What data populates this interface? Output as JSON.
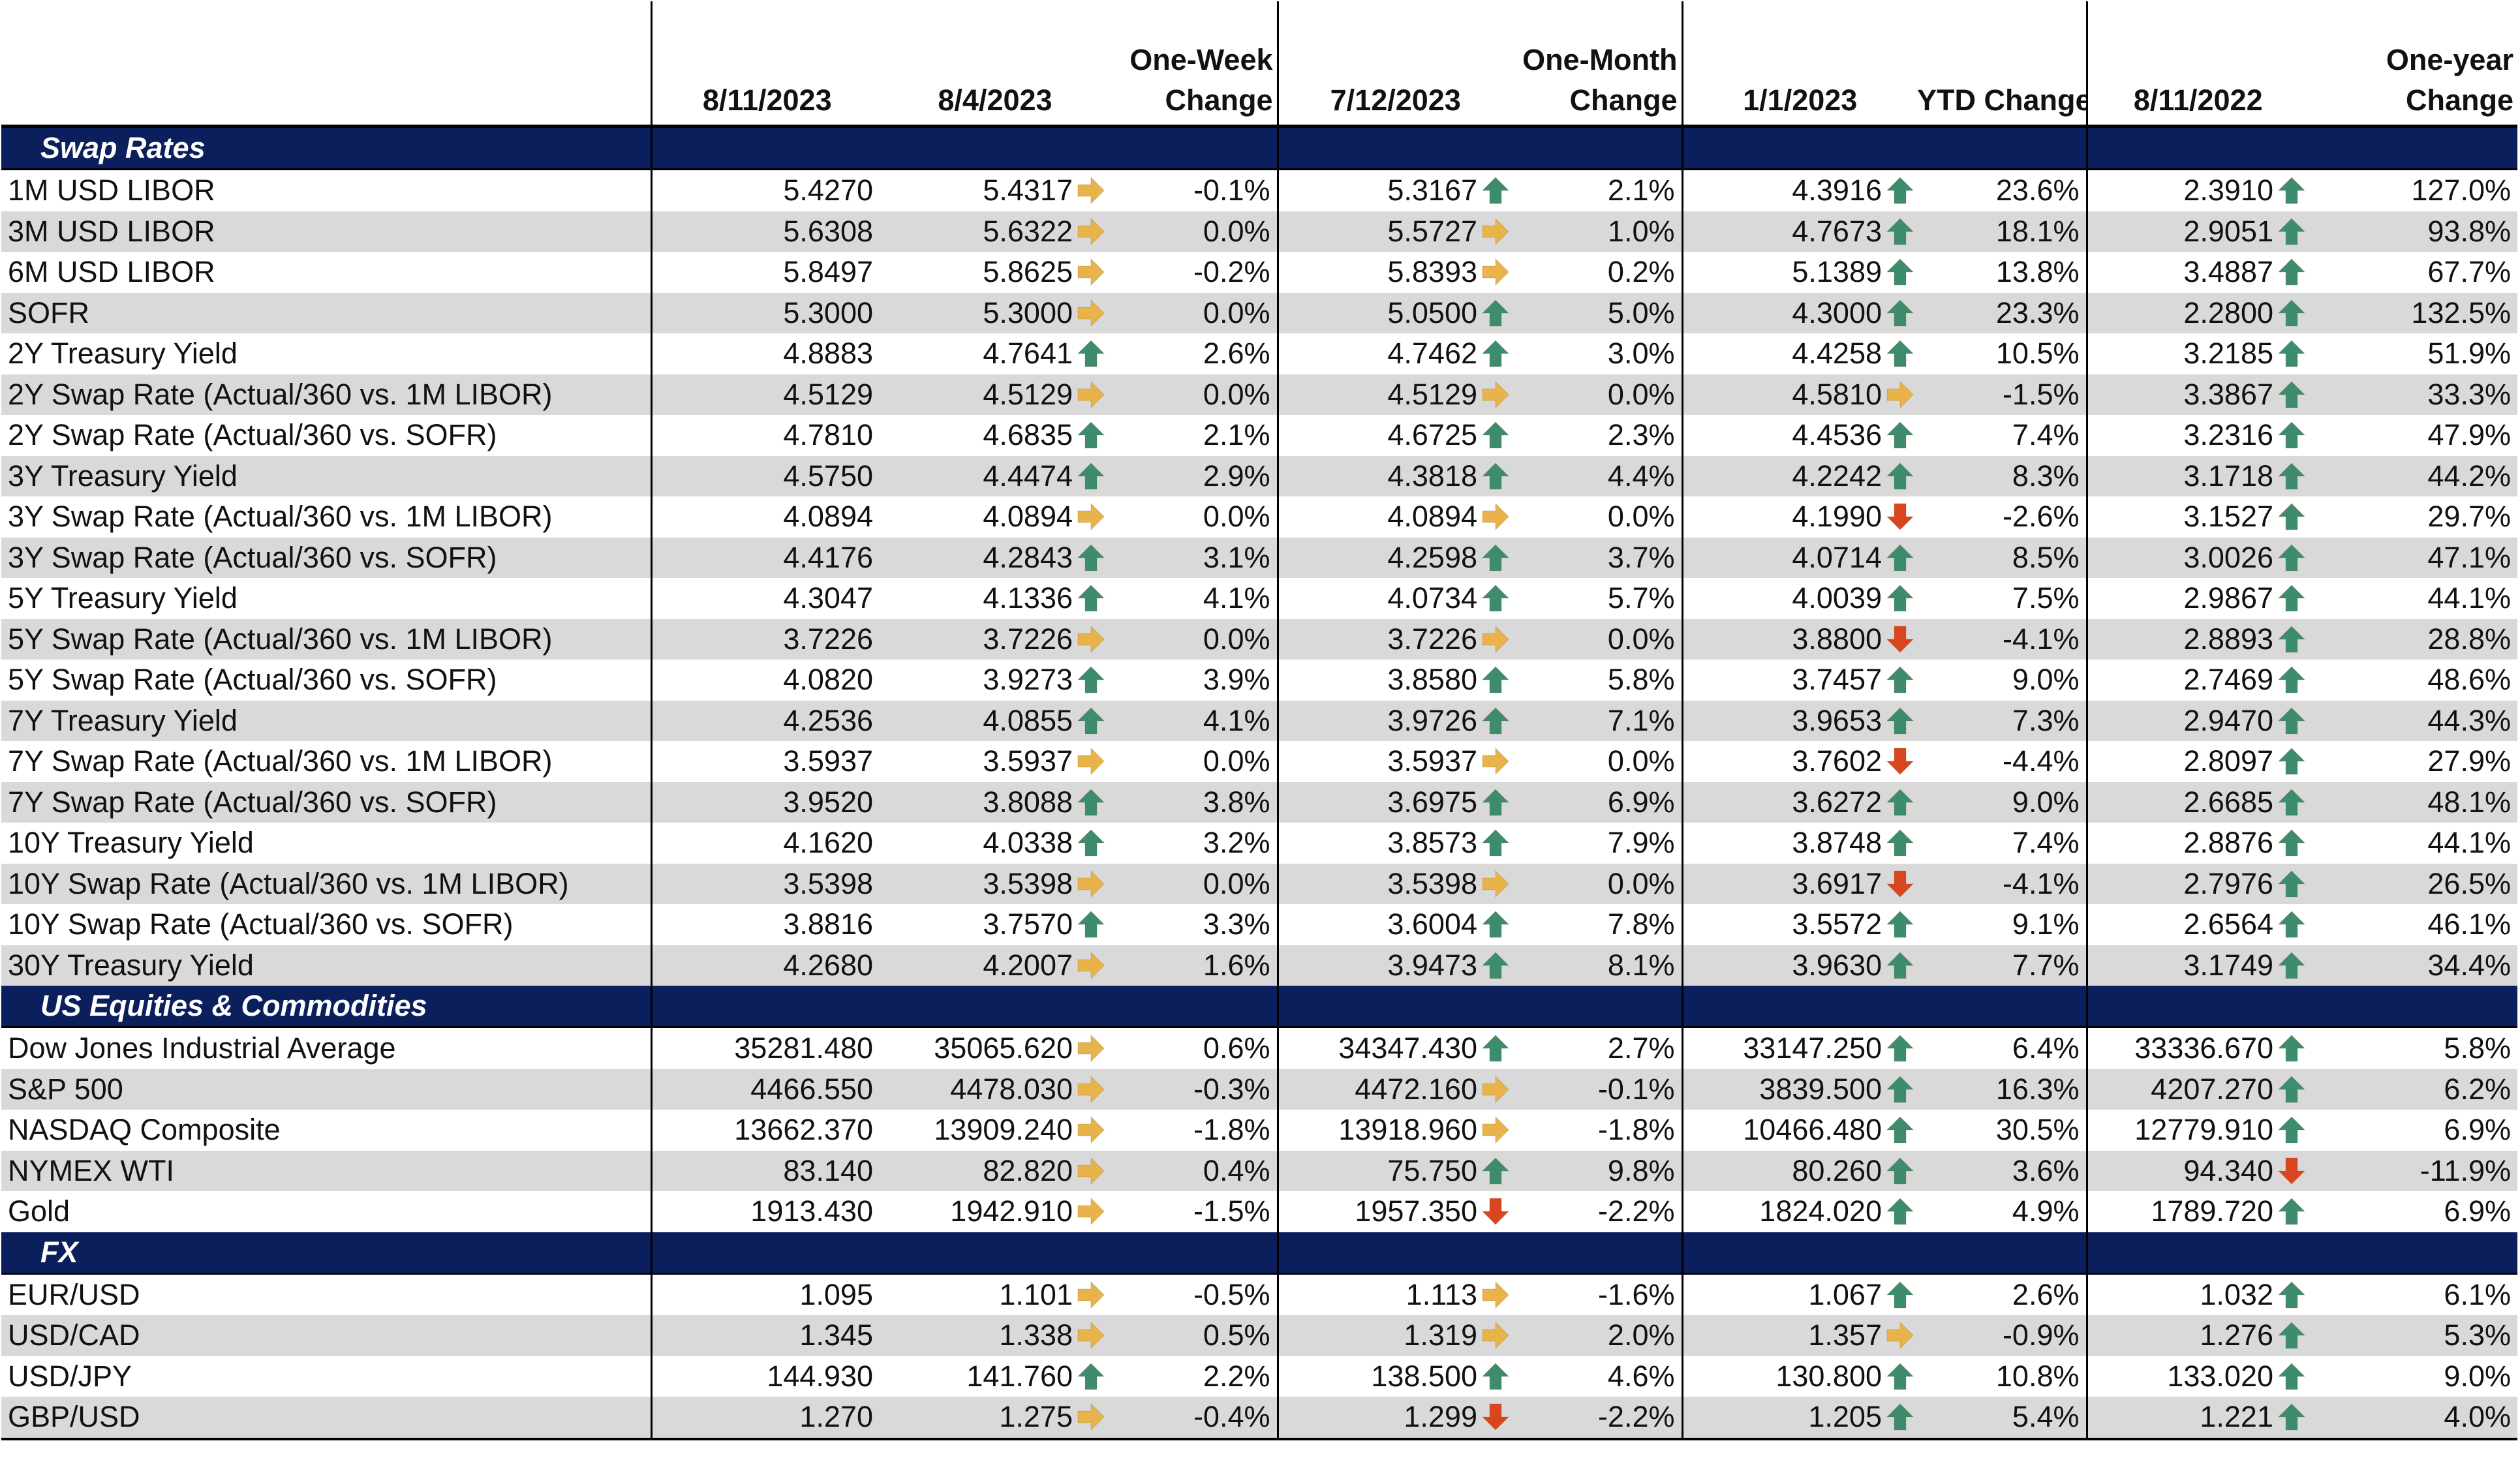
{
  "header": {
    "col1": "8/11/2023",
    "col2": "8/4/2023",
    "col3_line1": "One-Week",
    "col3_line2": "Change",
    "col4": "7/12/2023",
    "col5_line1": "One-Month",
    "col5_line2": "Change",
    "col6": "1/1/2023",
    "col7": "YTD Change",
    "col8": "8/11/2022",
    "col9_line1": "One-year",
    "col9_line2": "Change"
  },
  "colors": {
    "navy": "#0b1f5c",
    "up": "#3e8c6e",
    "flat": "#e7b34a",
    "down": "#d9451e",
    "stripe": "#d9d9d9"
  },
  "sections": [
    {
      "title": "Swap Rates",
      "rows": [
        {
          "name": "1M USD LIBOR",
          "v1": "5.4270",
          "v2": "5.4317",
          "a1": "flat",
          "c1": "-0.1%",
          "v3": "5.3167",
          "a2": "up",
          "c2": "2.1%",
          "v4": "4.3916",
          "a3": "up",
          "c3": "23.6%",
          "v5": "2.3910",
          "a4": "up",
          "c4": "127.0%"
        },
        {
          "name": "3M USD LIBOR",
          "v1": "5.6308",
          "v2": "5.6322",
          "a1": "flat",
          "c1": "0.0%",
          "v3": "5.5727",
          "a2": "flat",
          "c2": "1.0%",
          "v4": "4.7673",
          "a3": "up",
          "c3": "18.1%",
          "v5": "2.9051",
          "a4": "up",
          "c4": "93.8%"
        },
        {
          "name": "6M USD LIBOR",
          "v1": "5.8497",
          "v2": "5.8625",
          "a1": "flat",
          "c1": "-0.2%",
          "v3": "5.8393",
          "a2": "flat",
          "c2": "0.2%",
          "v4": "5.1389",
          "a3": "up",
          "c3": "13.8%",
          "v5": "3.4887",
          "a4": "up",
          "c4": "67.7%"
        },
        {
          "name": "SOFR",
          "v1": "5.3000",
          "v2": "5.3000",
          "a1": "flat",
          "c1": "0.0%",
          "v3": "5.0500",
          "a2": "up",
          "c2": "5.0%",
          "v4": "4.3000",
          "a3": "up",
          "c3": "23.3%",
          "v5": "2.2800",
          "a4": "up",
          "c4": "132.5%"
        },
        {
          "name": "2Y Treasury Yield",
          "v1": "4.8883",
          "v2": "4.7641",
          "a1": "up",
          "c1": "2.6%",
          "v3": "4.7462",
          "a2": "up",
          "c2": "3.0%",
          "v4": "4.4258",
          "a3": "up",
          "c3": "10.5%",
          "v5": "3.2185",
          "a4": "up",
          "c4": "51.9%"
        },
        {
          "name": "2Y Swap Rate (Actual/360 vs. 1M LIBOR)",
          "v1": "4.5129",
          "v2": "4.5129",
          "a1": "flat",
          "c1": "0.0%",
          "v3": "4.5129",
          "a2": "flat",
          "c2": "0.0%",
          "v4": "4.5810",
          "a3": "flat",
          "c3": "-1.5%",
          "v5": "3.3867",
          "a4": "up",
          "c4": "33.3%"
        },
        {
          "name": "2Y Swap Rate (Actual/360 vs. SOFR)",
          "v1": "4.7810",
          "v2": "4.6835",
          "a1": "up",
          "c1": "2.1%",
          "v3": "4.6725",
          "a2": "up",
          "c2": "2.3%",
          "v4": "4.4536",
          "a3": "up",
          "c3": "7.4%",
          "v5": "3.2316",
          "a4": "up",
          "c4": "47.9%"
        },
        {
          "name": "3Y Treasury Yield",
          "v1": "4.5750",
          "v2": "4.4474",
          "a1": "up",
          "c1": "2.9%",
          "v3": "4.3818",
          "a2": "up",
          "c2": "4.4%",
          "v4": "4.2242",
          "a3": "up",
          "c3": "8.3%",
          "v5": "3.1718",
          "a4": "up",
          "c4": "44.2%"
        },
        {
          "name": "3Y Swap Rate (Actual/360 vs. 1M LIBOR)",
          "v1": "4.0894",
          "v2": "4.0894",
          "a1": "flat",
          "c1": "0.0%",
          "v3": "4.0894",
          "a2": "flat",
          "c2": "0.0%",
          "v4": "4.1990",
          "a3": "down",
          "c3": "-2.6%",
          "v5": "3.1527",
          "a4": "up",
          "c4": "29.7%"
        },
        {
          "name": "3Y Swap Rate (Actual/360 vs. SOFR)",
          "v1": "4.4176",
          "v2": "4.2843",
          "a1": "up",
          "c1": "3.1%",
          "v3": "4.2598",
          "a2": "up",
          "c2": "3.7%",
          "v4": "4.0714",
          "a3": "up",
          "c3": "8.5%",
          "v5": "3.0026",
          "a4": "up",
          "c4": "47.1%"
        },
        {
          "name": "5Y Treasury Yield",
          "v1": "4.3047",
          "v2": "4.1336",
          "a1": "up",
          "c1": "4.1%",
          "v3": "4.0734",
          "a2": "up",
          "c2": "5.7%",
          "v4": "4.0039",
          "a3": "up",
          "c3": "7.5%",
          "v5": "2.9867",
          "a4": "up",
          "c4": "44.1%"
        },
        {
          "name": "5Y Swap Rate (Actual/360 vs. 1M LIBOR)",
          "v1": "3.7226",
          "v2": "3.7226",
          "a1": "flat",
          "c1": "0.0%",
          "v3": "3.7226",
          "a2": "flat",
          "c2": "0.0%",
          "v4": "3.8800",
          "a3": "down",
          "c3": "-4.1%",
          "v5": "2.8893",
          "a4": "up",
          "c4": "28.8%"
        },
        {
          "name": "5Y Swap Rate (Actual/360 vs. SOFR)",
          "v1": "4.0820",
          "v2": "3.9273",
          "a1": "up",
          "c1": "3.9%",
          "v3": "3.8580",
          "a2": "up",
          "c2": "5.8%",
          "v4": "3.7457",
          "a3": "up",
          "c3": "9.0%",
          "v5": "2.7469",
          "a4": "up",
          "c4": "48.6%"
        },
        {
          "name": "7Y Treasury Yield",
          "v1": "4.2536",
          "v2": "4.0855",
          "a1": "up",
          "c1": "4.1%",
          "v3": "3.9726",
          "a2": "up",
          "c2": "7.1%",
          "v4": "3.9653",
          "a3": "up",
          "c3": "7.3%",
          "v5": "2.9470",
          "a4": "up",
          "c4": "44.3%"
        },
        {
          "name": "7Y Swap Rate (Actual/360 vs. 1M LIBOR)",
          "v1": "3.5937",
          "v2": "3.5937",
          "a1": "flat",
          "c1": "0.0%",
          "v3": "3.5937",
          "a2": "flat",
          "c2": "0.0%",
          "v4": "3.7602",
          "a3": "down",
          "c3": "-4.4%",
          "v5": "2.8097",
          "a4": "up",
          "c4": "27.9%"
        },
        {
          "name": "7Y Swap Rate (Actual/360 vs. SOFR)",
          "v1": "3.9520",
          "v2": "3.8088",
          "a1": "up",
          "c1": "3.8%",
          "v3": "3.6975",
          "a2": "up",
          "c2": "6.9%",
          "v4": "3.6272",
          "a3": "up",
          "c3": "9.0%",
          "v5": "2.6685",
          "a4": "up",
          "c4": "48.1%"
        },
        {
          "name": "10Y Treasury Yield",
          "v1": "4.1620",
          "v2": "4.0338",
          "a1": "up",
          "c1": "3.2%",
          "v3": "3.8573",
          "a2": "up",
          "c2": "7.9%",
          "v4": "3.8748",
          "a3": "up",
          "c3": "7.4%",
          "v5": "2.8876",
          "a4": "up",
          "c4": "44.1%"
        },
        {
          "name": "10Y Swap Rate (Actual/360 vs. 1M LIBOR)",
          "v1": "3.5398",
          "v2": "3.5398",
          "a1": "flat",
          "c1": "0.0%",
          "v3": "3.5398",
          "a2": "flat",
          "c2": "0.0%",
          "v4": "3.6917",
          "a3": "down",
          "c3": "-4.1%",
          "v5": "2.7976",
          "a4": "up",
          "c4": "26.5%"
        },
        {
          "name": "10Y Swap Rate (Actual/360 vs. SOFR)",
          "v1": "3.8816",
          "v2": "3.7570",
          "a1": "up",
          "c1": "3.3%",
          "v3": "3.6004",
          "a2": "up",
          "c2": "7.8%",
          "v4": "3.5572",
          "a3": "up",
          "c3": "9.1%",
          "v5": "2.6564",
          "a4": "up",
          "c4": "46.1%"
        },
        {
          "name": "30Y Treasury Yield",
          "v1": "4.2680",
          "v2": "4.2007",
          "a1": "flat",
          "c1": "1.6%",
          "v3": "3.9473",
          "a2": "up",
          "c2": "8.1%",
          "v4": "3.9630",
          "a3": "up",
          "c3": "7.7%",
          "v5": "3.1749",
          "a4": "up",
          "c4": "34.4%"
        }
      ]
    },
    {
      "title": "US Equities & Commodities",
      "rows": [
        {
          "name": "Dow Jones Industrial Average",
          "v1": "35281.480",
          "v2": "35065.620",
          "a1": "flat",
          "c1": "0.6%",
          "v3": "34347.430",
          "a2": "up",
          "c2": "2.7%",
          "v4": "33147.250",
          "a3": "up",
          "c3": "6.4%",
          "v5": "33336.670",
          "a4": "up",
          "c4": "5.8%"
        },
        {
          "name": "S&P 500",
          "v1": "4466.550",
          "v2": "4478.030",
          "a1": "flat",
          "c1": "-0.3%",
          "v3": "4472.160",
          "a2": "flat",
          "c2": "-0.1%",
          "v4": "3839.500",
          "a3": "up",
          "c3": "16.3%",
          "v5": "4207.270",
          "a4": "up",
          "c4": "6.2%"
        },
        {
          "name": "NASDAQ Composite",
          "v1": "13662.370",
          "v2": "13909.240",
          "a1": "flat",
          "c1": "-1.8%",
          "v3": "13918.960",
          "a2": "flat",
          "c2": "-1.8%",
          "v4": "10466.480",
          "a3": "up",
          "c3": "30.5%",
          "v5": "12779.910",
          "a4": "up",
          "c4": "6.9%"
        },
        {
          "name": "NYMEX WTI",
          "v1": "83.140",
          "v2": "82.820",
          "a1": "flat",
          "c1": "0.4%",
          "v3": "75.750",
          "a2": "up",
          "c2": "9.8%",
          "v4": "80.260",
          "a3": "up",
          "c3": "3.6%",
          "v5": "94.340",
          "a4": "down",
          "c4": "-11.9%"
        },
        {
          "name": "Gold",
          "v1": "1913.430",
          "v2": "1942.910",
          "a1": "flat",
          "c1": "-1.5%",
          "v3": "1957.350",
          "a2": "down",
          "c2": "-2.2%",
          "v4": "1824.020",
          "a3": "up",
          "c3": "4.9%",
          "v5": "1789.720",
          "a4": "up",
          "c4": "6.9%"
        }
      ]
    },
    {
      "title": "FX",
      "rows": [
        {
          "name": "EUR/USD",
          "v1": "1.095",
          "v2": "1.101",
          "a1": "flat",
          "c1": "-0.5%",
          "v3": "1.113",
          "a2": "flat",
          "c2": "-1.6%",
          "v4": "1.067",
          "a3": "up",
          "c3": "2.6%",
          "v5": "1.032",
          "a4": "up",
          "c4": "6.1%"
        },
        {
          "name": "USD/CAD",
          "v1": "1.345",
          "v2": "1.338",
          "a1": "flat",
          "c1": "0.5%",
          "v3": "1.319",
          "a2": "flat",
          "c2": "2.0%",
          "v4": "1.357",
          "a3": "flat",
          "c3": "-0.9%",
          "v5": "1.276",
          "a4": "up",
          "c4": "5.3%"
        },
        {
          "name": "USD/JPY",
          "v1": "144.930",
          "v2": "141.760",
          "a1": "up",
          "c1": "2.2%",
          "v3": "138.500",
          "a2": "up",
          "c2": "4.6%",
          "v4": "130.800",
          "a3": "up",
          "c3": "10.8%",
          "v5": "133.020",
          "a4": "up",
          "c4": "9.0%"
        },
        {
          "name": "GBP/USD",
          "v1": "1.270",
          "v2": "1.275",
          "a1": "flat",
          "c1": "-0.4%",
          "v3": "1.299",
          "a2": "down",
          "c2": "-2.2%",
          "v4": "1.205",
          "a3": "up",
          "c3": "5.4%",
          "v5": "1.221",
          "a4": "up",
          "c4": "4.0%"
        }
      ]
    }
  ]
}
